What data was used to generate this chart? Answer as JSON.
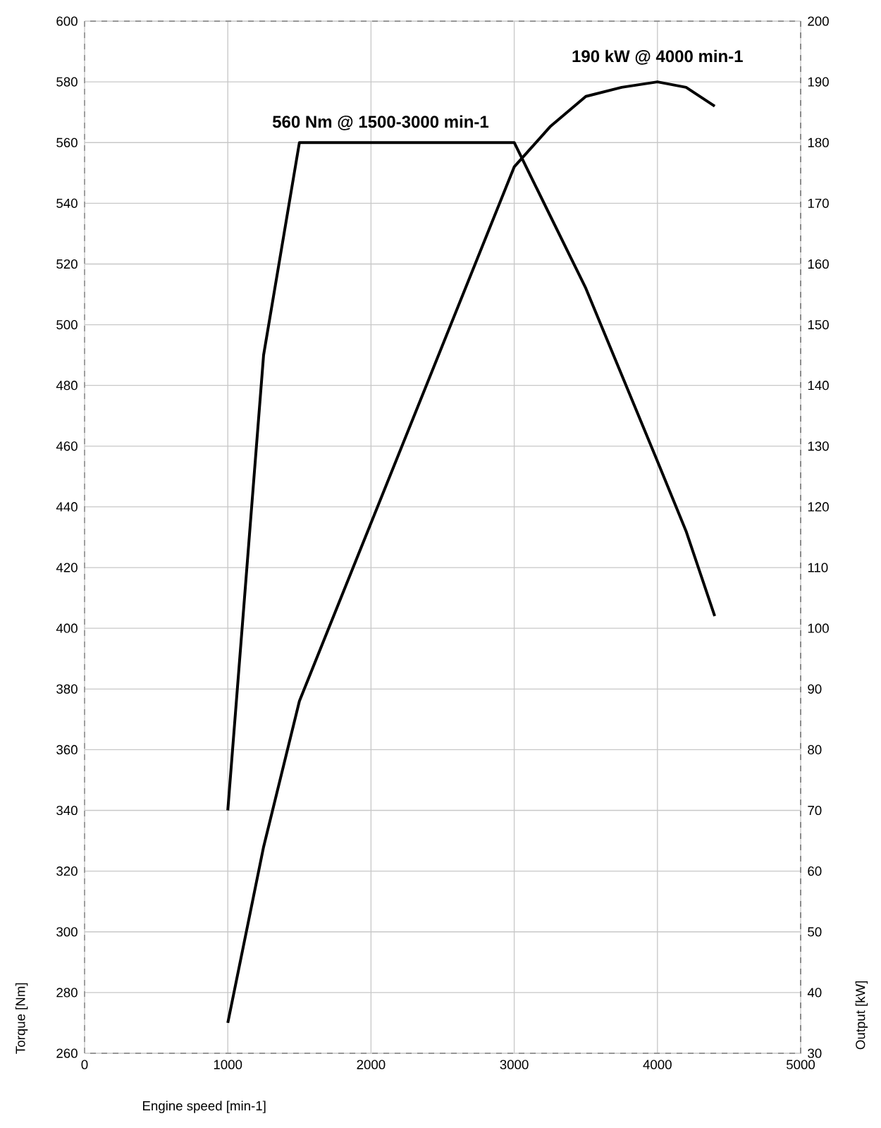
{
  "chart_data": {
    "type": "line",
    "xlabel": "Engine speed [min-1]",
    "ylabel": "Torque [Nm]",
    "y2label": "Output [kW]",
    "series": [
      {
        "color": "#000000",
        "x": [
          1000,
          1250,
          1500,
          3000,
          3500,
          4000,
          4200,
          4400
        ],
        "values": [
          340,
          490,
          560,
          560,
          512,
          455,
          432,
          404
        ]
      },
      {
        "color": "#000000",
        "axis": "y2",
        "x": [
          1000,
          1250,
          1500,
          3000,
          3250,
          3500,
          3750,
          4000,
          4200,
          4400
        ],
        "values": [
          35,
          64,
          88,
          176,
          182.6,
          187.6,
          189.1,
          190,
          189.1,
          186
        ]
      }
    ],
    "annotations": [
      {
        "text": "560 Nm @ 1500-3000 min-1",
        "x": 1500,
        "y": 560
      },
      "190 kW @ 4000 min-1"
    ],
    "xlim": [
      0,
      5000
    ],
    "xticks": [
      0,
      1000,
      2000,
      3000,
      4000,
      5000
    ],
    "ylim": [
      260,
      600
    ],
    "yticks": [
      260,
      280,
      300,
      320,
      340,
      360,
      380,
      400,
      420,
      440,
      460,
      480,
      500,
      520,
      540,
      560,
      580,
      600
    ],
    "y2lim": [
      30,
      200
    ],
    "y2ticks": [
      30,
      40,
      50,
      60,
      70,
      80,
      90,
      100,
      110,
      120,
      130,
      140,
      150,
      160,
      170,
      180,
      190,
      200
    ],
    "grid": true,
    "marker": "none",
    "line_style": "solid"
  }
}
